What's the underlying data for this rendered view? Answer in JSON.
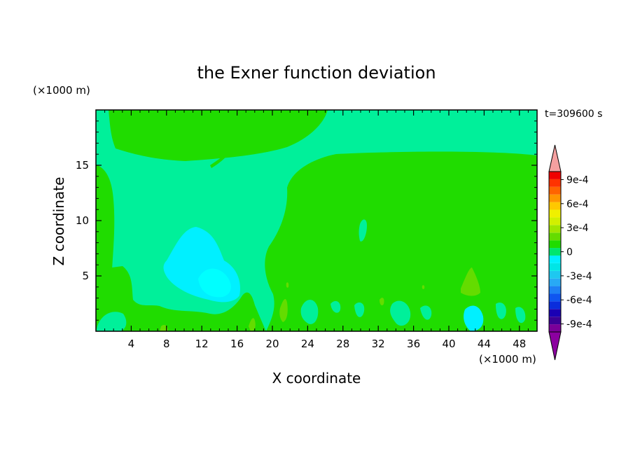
{
  "chart_data": {
    "type": "heatmap",
    "title": "the Exner function deviation",
    "time_label": "t=309600 s",
    "xlabel": "X coordinate",
    "ylabel": "Z coordinate",
    "x_unit": "(×1000 m)",
    "y_unit": "(×1000 m)",
    "xlim": [
      0,
      50
    ],
    "ylim": [
      0,
      20
    ],
    "x_ticks": [
      4,
      8,
      12,
      16,
      20,
      24,
      28,
      32,
      36,
      40,
      44,
      48
    ],
    "y_ticks": [
      5,
      10,
      15
    ],
    "colorbar": {
      "min": -0.001,
      "max": 0.001,
      "step": 0.0001,
      "labels": [
        "9e-4",
        "6e-4",
        "3e-4",
        "0",
        "-3e-4",
        "-6e-4",
        "-9e-4"
      ],
      "colors": [
        "#7a0099",
        "#3c0096",
        "#1a00b4",
        "#0a2ddc",
        "#0f55f0",
        "#1e80f5",
        "#28aaf5",
        "#1ec8f0",
        "#00e6e6",
        "#00f0ff",
        "#00e66e",
        "#20dc00",
        "#64dc00",
        "#a0e600",
        "#d2f000",
        "#f0f000",
        "#ffc800",
        "#ff9600",
        "#ff6400",
        "#ff3200",
        "#f00000"
      ],
      "extend_low_color": "#8c00a0",
      "extend_high_color": "#f5a0a0"
    }
  }
}
